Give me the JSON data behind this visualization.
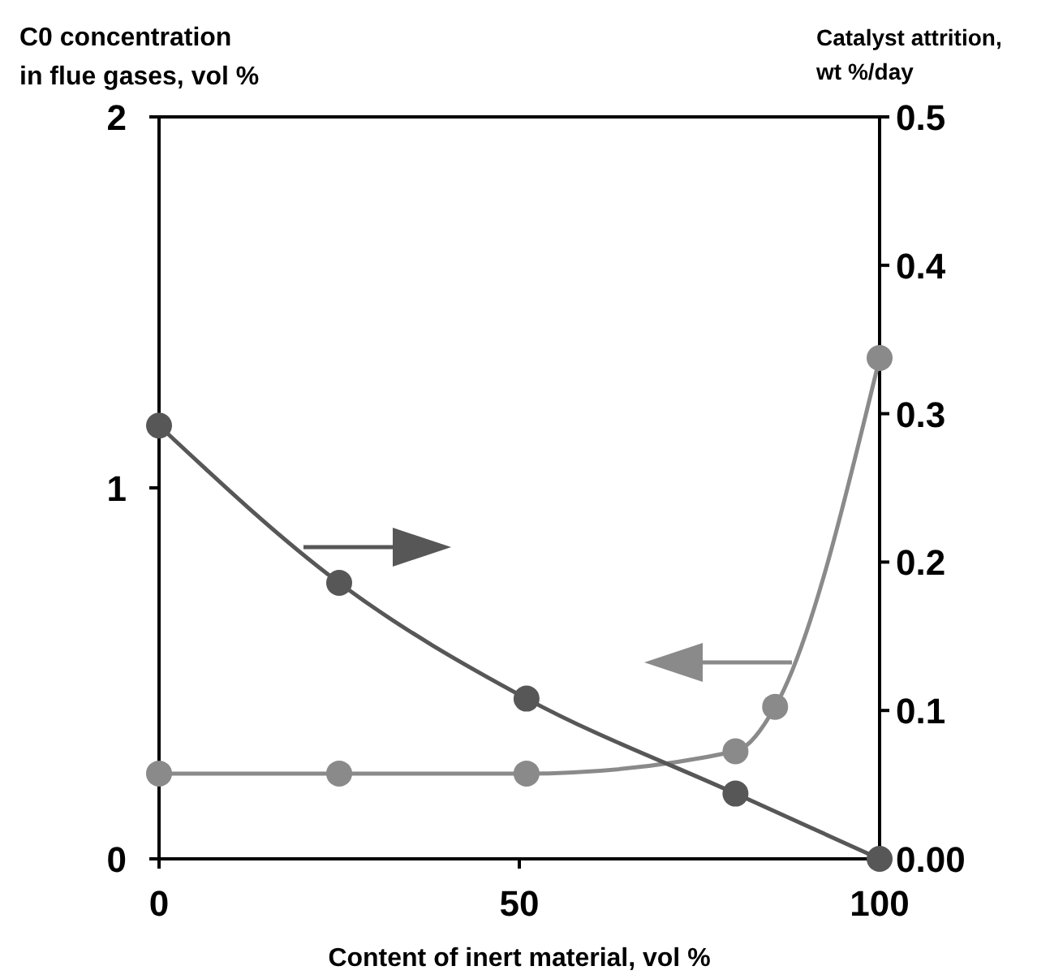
{
  "chart_data": {
    "type": "line",
    "xlabel": "Content of inert material, vol %",
    "ylabel": "C0 concentration\nin flue gases, vol %",
    "y2label": "Catalyst attrition,\nwt %/day",
    "series": [
      {
        "color": "#8a8a8a",
        "x": [
          0,
          25,
          51,
          80,
          85.5,
          100
        ],
        "values": [
          0.23,
          0.23,
          0.23,
          0.29,
          0.41,
          1.35
        ]
      },
      {
        "color": "#575757",
        "axis": "y2",
        "x": [
          0,
          25,
          51,
          80,
          100
        ],
        "values": [
          0.292,
          0.186,
          0.108,
          0.044,
          0
        ]
      }
    ],
    "xlim": [
      0,
      100
    ],
    "xticks": [
      0,
      50,
      100
    ],
    "ylim": [
      0,
      2
    ],
    "yticks": [
      0,
      1,
      2
    ],
    "y2lim": [
      0,
      0.5
    ],
    "y2ticks": [
      {
        "value": 0,
        "label": "0.00"
      },
      0.1,
      0.2,
      0.3,
      0.4,
      0.5
    ],
    "marker": "circle",
    "line_style": "solid",
    "grid": false
  }
}
